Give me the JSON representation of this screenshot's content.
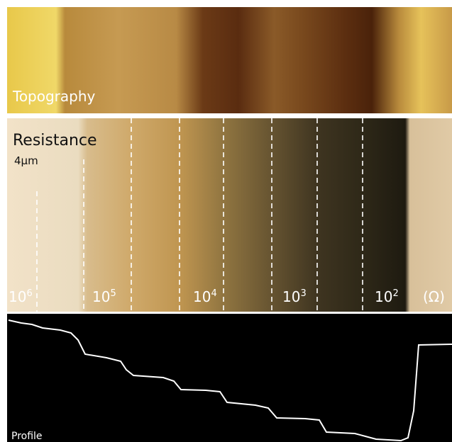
{
  "topography": {
    "title": "Topography"
  },
  "resistance": {
    "title": "Resistance",
    "scale": "4μm",
    "labels": [
      {
        "base": "10",
        "exp": "6"
      },
      {
        "base": "10",
        "exp": "5"
      },
      {
        "base": "10",
        "exp": "4"
      },
      {
        "base": "10",
        "exp": "3"
      },
      {
        "base": "10",
        "exp": "2"
      }
    ],
    "unit": "(Ω)"
  },
  "profile": {
    "title": "Profile"
  }
}
